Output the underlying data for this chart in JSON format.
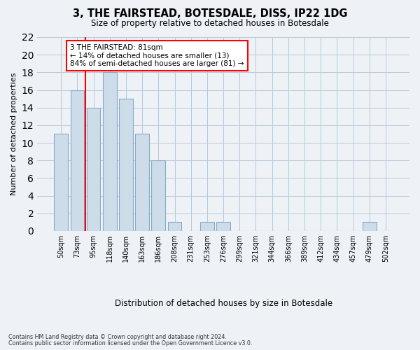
{
  "title1": "3, THE FAIRSTEAD, BOTESDALE, DISS, IP22 1DG",
  "title2": "Size of property relative to detached houses in Botesdale",
  "xlabel": "Distribution of detached houses by size in Botesdale",
  "ylabel": "Number of detached properties",
  "bar_labels": [
    "50sqm",
    "73sqm",
    "95sqm",
    "118sqm",
    "140sqm",
    "163sqm",
    "186sqm",
    "208sqm",
    "231sqm",
    "253sqm",
    "276sqm",
    "299sqm",
    "321sqm",
    "344sqm",
    "366sqm",
    "389sqm",
    "412sqm",
    "434sqm",
    "457sqm",
    "479sqm",
    "502sqm"
  ],
  "bar_values": [
    11,
    16,
    14,
    18,
    15,
    11,
    8,
    1,
    0,
    1,
    1,
    0,
    0,
    0,
    0,
    0,
    0,
    0,
    0,
    1,
    0
  ],
  "bar_color": "#ccdce8",
  "bar_edge_color": "#88aac8",
  "ylim": [
    0,
    22
  ],
  "yticks": [
    0,
    2,
    4,
    6,
    8,
    10,
    12,
    14,
    16,
    18,
    20,
    22
  ],
  "red_line_x": 1.5,
  "annotation_text": "3 THE FAIRSTEAD: 81sqm\n← 14% of detached houses are smaller (13)\n84% of semi-detached houses are larger (81) →",
  "footer1": "Contains HM Land Registry data © Crown copyright and database right 2024.",
  "footer2": "Contains public sector information licensed under the Open Government Licence v3.0.",
  "background_color": "#eef2f7",
  "plot_bg_color": "#eef2f7"
}
